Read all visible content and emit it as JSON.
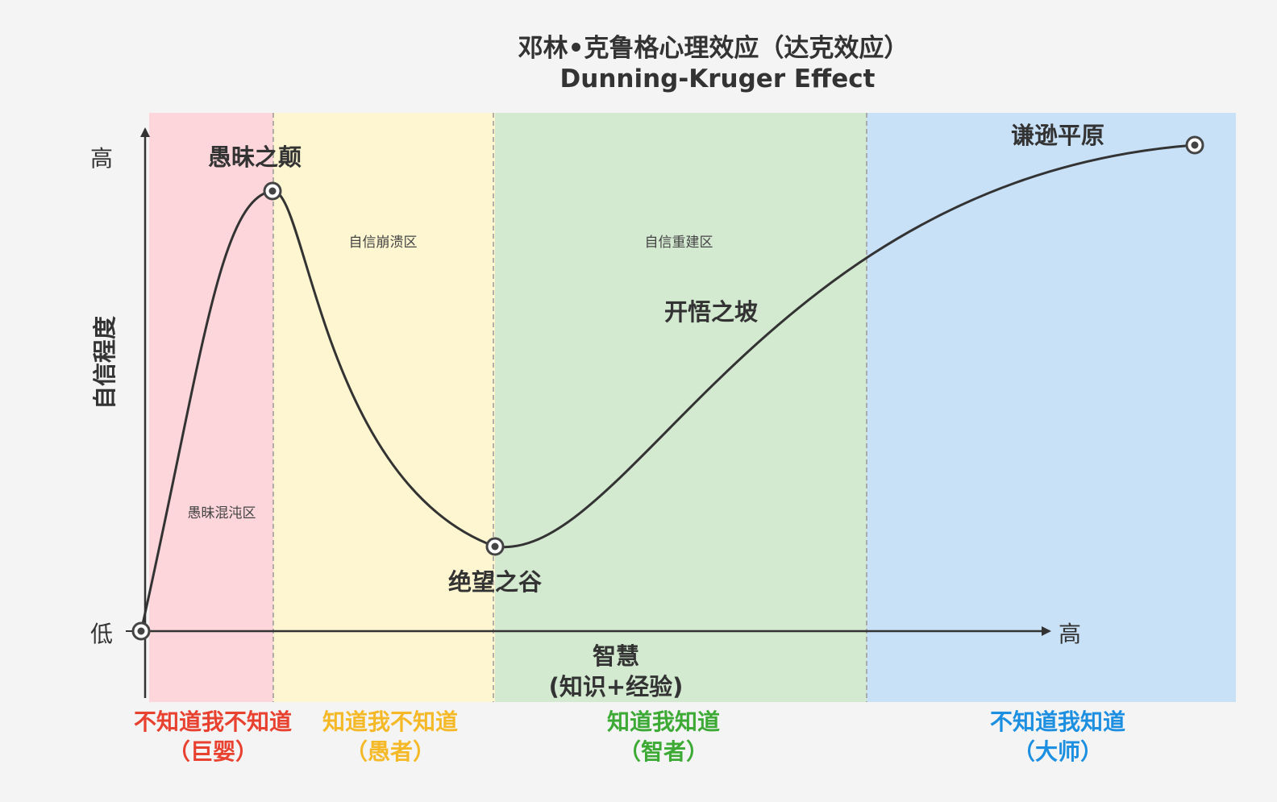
{
  "title": {
    "zh": "邓林•克鲁格心理效应（达克效应）",
    "en": "Dunning-Kruger Effect"
  },
  "axes": {
    "y_title": "自信程度",
    "y_high": "高",
    "y_low": "低",
    "x_high": "高",
    "x_title_line1": "智慧",
    "x_title_line2": "(知识+经验)"
  },
  "points": {
    "peak": "愚昧之颠",
    "valley": "绝望之谷",
    "slope": "开悟之坡",
    "plateau": "谦逊平原"
  },
  "zones": {
    "ignorance": "愚昧混沌区",
    "collapse": "自信崩溃区",
    "rebuild": "自信重建区"
  },
  "quadrants": [
    {
      "line1": "不知道我不知道",
      "line2": "（巨婴）",
      "bg": "#fdd6db",
      "text_color": "#e8412f"
    },
    {
      "line1": "知道我不知道",
      "line2": "（愚者）",
      "bg": "#fdf6d0",
      "text_color": "#f5b927"
    },
    {
      "line1": "知道我知道",
      "line2": "（智者）",
      "bg": "#d3e9d0",
      "text_color": "#3daa35"
    },
    {
      "line1": "不知道我知道",
      "line2": "（大师）",
      "bg": "#c8e1f7",
      "text_color": "#1c8fe0"
    }
  ],
  "colors": {
    "curve": "#333333",
    "axis": "#333333",
    "divider": "#999999"
  }
}
